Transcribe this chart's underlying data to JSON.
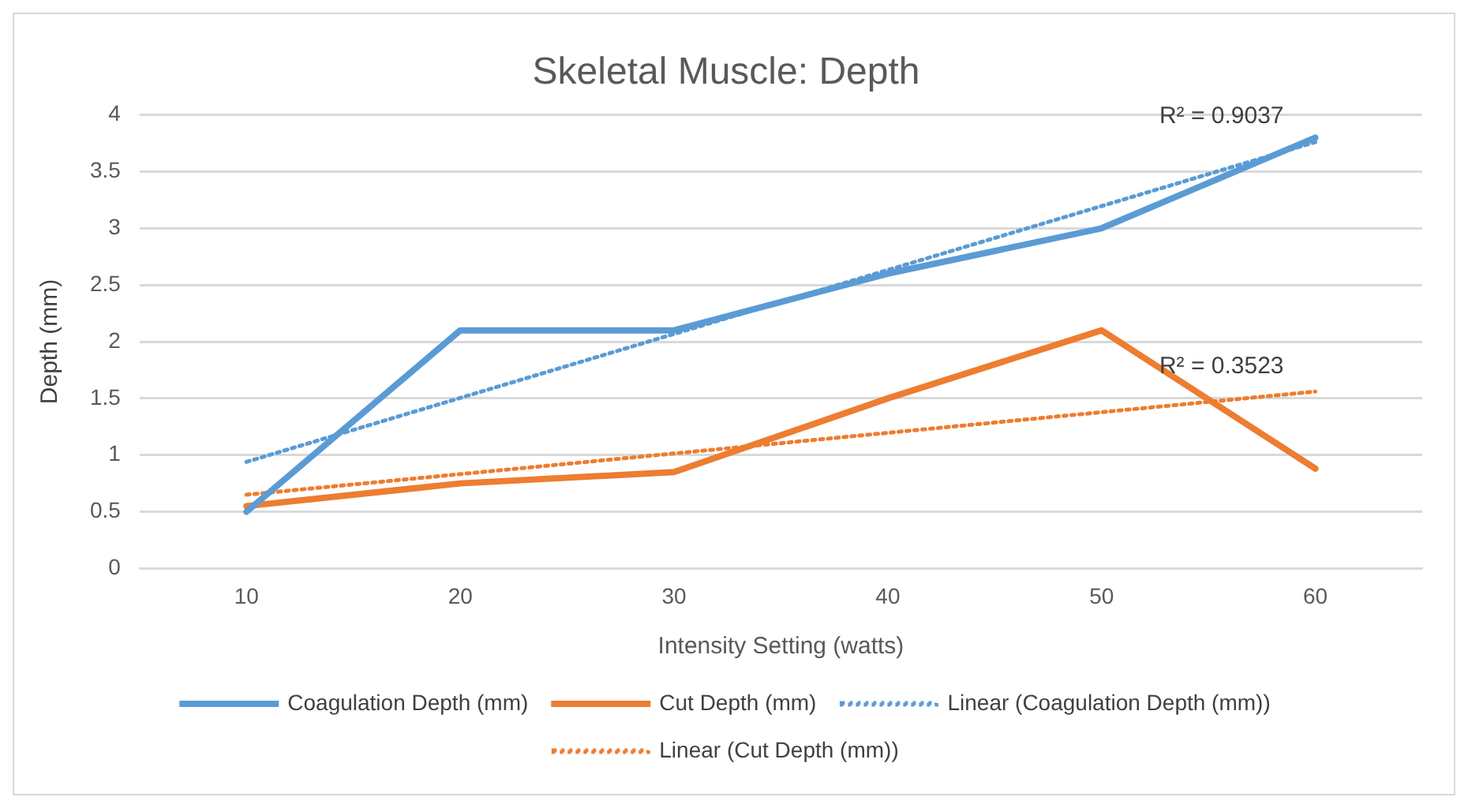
{
  "chart_data": {
    "type": "line",
    "title": "Skeletal Muscle: Depth",
    "xlabel": "Intensity Setting (watts)",
    "ylabel": "Depth (mm)",
    "categories": [
      "10",
      "20",
      "30",
      "40",
      "50",
      "60"
    ],
    "series": [
      {
        "name": "Coagulation Depth (mm)",
        "color": "#5b9bd5",
        "values": [
          0.5,
          2.1,
          2.1,
          2.6,
          3.0,
          3.8
        ]
      },
      {
        "name": "Cut Depth (mm)",
        "color": "#ed7d31",
        "values": [
          0.55,
          0.75,
          0.85,
          1.5,
          2.1,
          0.88
        ]
      },
      {
        "name": "Linear (Coagulation Depth (mm))",
        "color": "#5b9bd5",
        "type": "line",
        "line_style": "dotted",
        "x": [
          "10",
          "60"
        ],
        "values": [
          0.94,
          3.76
        ]
      },
      {
        "name": "Linear (Cut Depth (mm))",
        "color": "#ed7d31",
        "type": "line",
        "line_style": "dotted",
        "x": [
          "10",
          "60"
        ],
        "values": [
          0.65,
          1.56
        ]
      }
    ],
    "annotations": [
      "R² = 0.9037",
      "R² = 0.3523"
    ],
    "ylim": [
      0,
      4
    ],
    "yticks": [
      0,
      0.5,
      1,
      1.5,
      2,
      2.5,
      3,
      3.5,
      4
    ],
    "grid": "y",
    "legend": "bottom",
    "marker": "none",
    "line_style": "solid"
  }
}
